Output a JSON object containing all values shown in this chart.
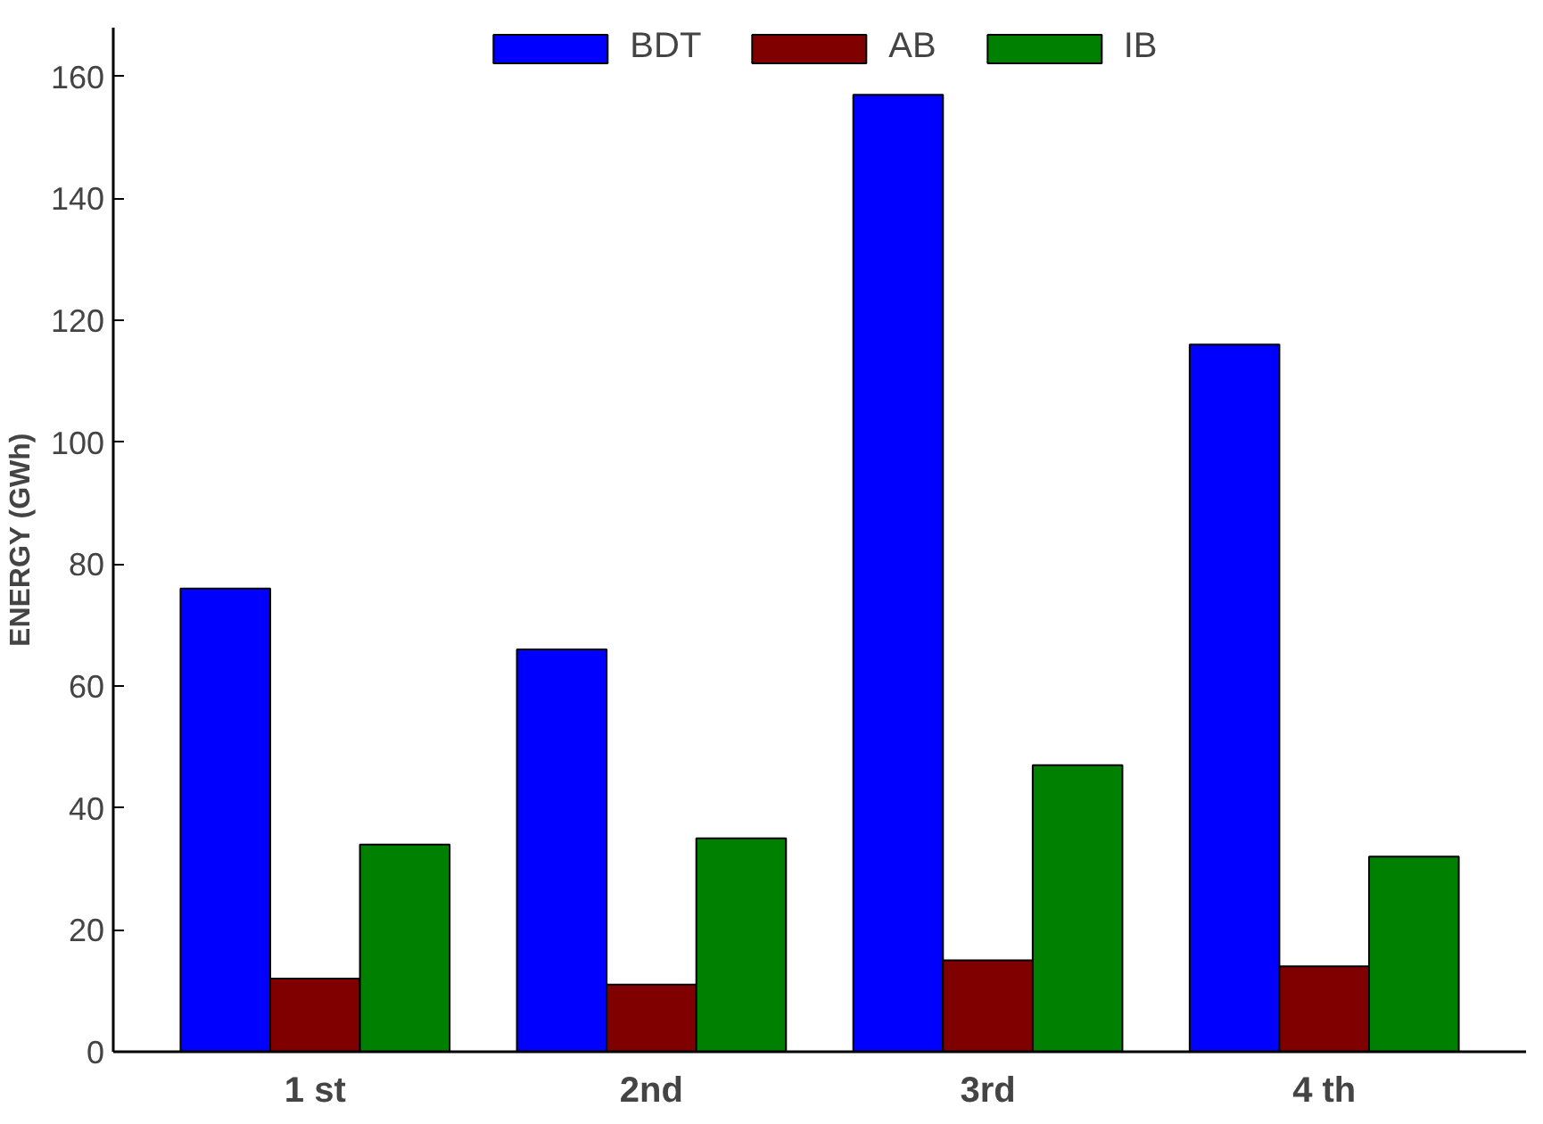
{
  "chart_data": {
    "type": "bar",
    "ylabel": "ENERGY (GWh)",
    "categories": [
      "1 st",
      "2nd",
      "3rd",
      "4 th"
    ],
    "series": [
      {
        "name": "BDT",
        "color": "#0000ff",
        "values": [
          76,
          66,
          157,
          116
        ]
      },
      {
        "name": "AB",
        "color": "#800000",
        "values": [
          12,
          11,
          15,
          14
        ]
      },
      {
        "name": "IB",
        "color": "#008000",
        "values": [
          34,
          35,
          47,
          32
        ]
      }
    ],
    "ylim": [
      0,
      168
    ],
    "yticks": [
      0,
      20,
      40,
      60,
      80,
      100,
      120,
      140,
      160
    ],
    "grid": false,
    "legend": "top"
  }
}
